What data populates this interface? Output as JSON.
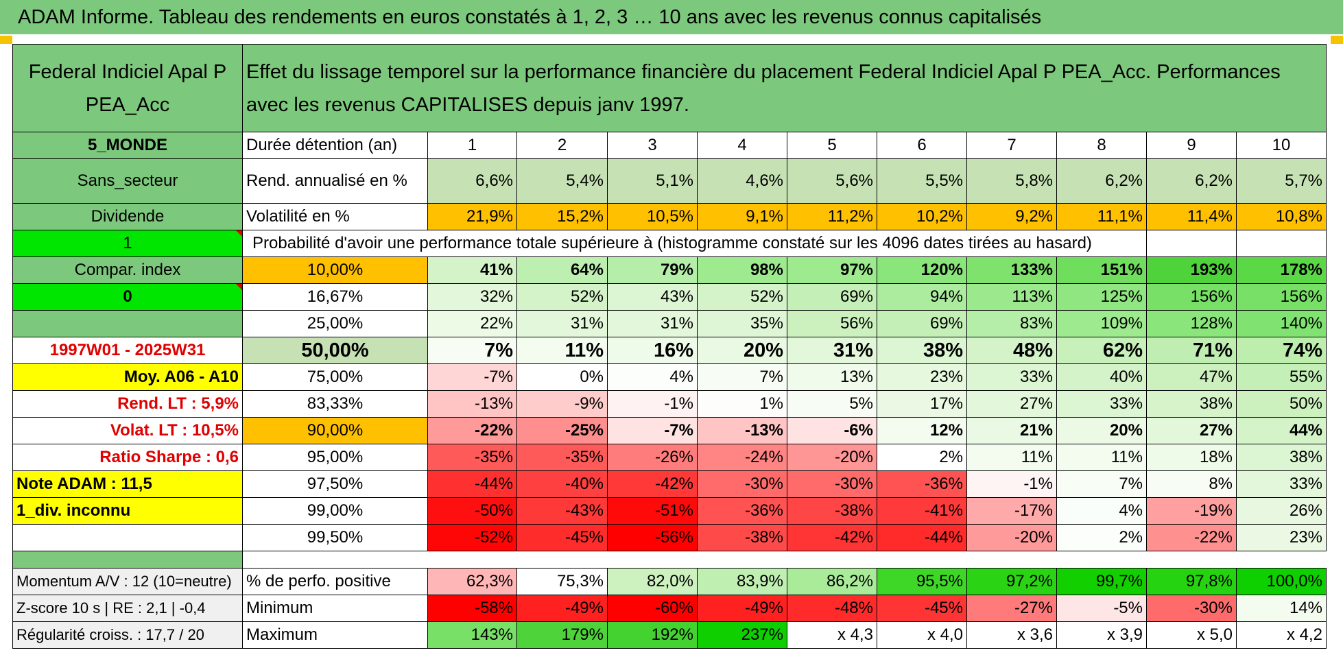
{
  "title": "ADAM Informe. Tableau des rendements en euros constatés à 1, 2, 3 … 10 ans avec les revenus connus capitalisés",
  "fund": {
    "name": "Federal Indiciel Apal P PEA_Acc",
    "description": "Effet du lissage temporel sur la performance financière du placement Federal Indiciel Apal P PEA_Acc. Performances avec les revenus CAPITALISES depuis janv 1997."
  },
  "left_panel": {
    "zone": "5_MONDE",
    "sector": "Sans_secteur",
    "dividend_label": "Dividende",
    "input1": "1",
    "compar_index": "Compar. index",
    "input2": "0",
    "period": "1997W01 - 2025W31",
    "moy": "Moy. A06 - A10",
    "rend_lt": "Rend. LT :    5,9%",
    "volat_lt": "Volat. LT :    10,5%",
    "ratio_sharpe": "Ratio Sharpe :    0,6",
    "note_adam": "Note ADAM : 11,5",
    "div_inconnu": "1_div. inconnu",
    "momentum": "Momentum A/V : 12 (10=neutre)",
    "zscore": "Z-score 10 s | RE : 2,1 | -0,4",
    "regularite": "Régularité croiss. : 17,7 / 20"
  },
  "table": {
    "duration_label": "Durée détention (an)",
    "years": [
      "1",
      "2",
      "3",
      "4",
      "5",
      "6",
      "7",
      "8",
      "9",
      "10"
    ],
    "rend_label": "Rend. annualisé en %",
    "rend": [
      "6,6%",
      "5,4%",
      "5,1%",
      "4,6%",
      "5,6%",
      "5,5%",
      "5,8%",
      "6,2%",
      "6,2%",
      "5,7%"
    ],
    "vol_label": "Volatilité en %",
    "vol": [
      "21,9%",
      "15,2%",
      "10,5%",
      "9,1%",
      "11,2%",
      "10,2%",
      "9,2%",
      "11,1%",
      "11,4%",
      "10,8%"
    ],
    "prob_label": "Probabilité d'avoir une performance totale supérieure à (histogramme constaté sur les 4096 dates tirées au hasard)",
    "prob_rows": [
      {
        "p": "10,00%",
        "v": [
          "41%",
          "64%",
          "79%",
          "98%",
          "97%",
          "120%",
          "133%",
          "151%",
          "193%",
          "178%"
        ]
      },
      {
        "p": "16,67%",
        "v": [
          "32%",
          "52%",
          "43%",
          "52%",
          "69%",
          "94%",
          "113%",
          "125%",
          "156%",
          "156%"
        ]
      },
      {
        "p": "25,00%",
        "v": [
          "22%",
          "31%",
          "31%",
          "35%",
          "56%",
          "69%",
          "83%",
          "109%",
          "128%",
          "140%"
        ]
      },
      {
        "p": "50,00%",
        "v": [
          "7%",
          "11%",
          "16%",
          "20%",
          "31%",
          "38%",
          "48%",
          "62%",
          "71%",
          "74%"
        ]
      },
      {
        "p": "75,00%",
        "v": [
          "-7%",
          "0%",
          "4%",
          "7%",
          "13%",
          "23%",
          "33%",
          "40%",
          "47%",
          "55%"
        ]
      },
      {
        "p": "83,33%",
        "v": [
          "-13%",
          "-9%",
          "-1%",
          "1%",
          "5%",
          "17%",
          "27%",
          "33%",
          "38%",
          "50%"
        ]
      },
      {
        "p": "90,00%",
        "v": [
          "-22%",
          "-25%",
          "-7%",
          "-13%",
          "-6%",
          "12%",
          "21%",
          "20%",
          "27%",
          "44%"
        ]
      },
      {
        "p": "95,00%",
        "v": [
          "-35%",
          "-35%",
          "-26%",
          "-24%",
          "-20%",
          "2%",
          "11%",
          "11%",
          "18%",
          "38%"
        ]
      },
      {
        "p": "97,50%",
        "v": [
          "-44%",
          "-40%",
          "-42%",
          "-30%",
          "-30%",
          "-36%",
          "-1%",
          "7%",
          "8%",
          "33%"
        ]
      },
      {
        "p": "99,00%",
        "v": [
          "-50%",
          "-43%",
          "-51%",
          "-36%",
          "-38%",
          "-41%",
          "-17%",
          "4%",
          "-19%",
          "26%"
        ]
      },
      {
        "p": "99,50%",
        "v": [
          "-52%",
          "-45%",
          "-56%",
          "-38%",
          "-42%",
          "-44%",
          "-20%",
          "2%",
          "-22%",
          "23%"
        ]
      }
    ],
    "pos_label": "% de perfo. positive",
    "pos": [
      "62,3%",
      "75,3%",
      "82,0%",
      "83,9%",
      "86,2%",
      "95,5%",
      "97,2%",
      "99,7%",
      "97,8%",
      "100,0%"
    ],
    "min_label": "Minimum",
    "min": [
      "-58%",
      "-49%",
      "-60%",
      "-49%",
      "-48%",
      "-45%",
      "-27%",
      "-5%",
      "-30%",
      "14%"
    ],
    "max_label": "Maximum",
    "max": [
      "143%",
      "179%",
      "192%",
      "237%",
      "x 4,3",
      "x 4,0",
      "x 3,6",
      "x 3,9",
      "x 5,0",
      "x 4,2"
    ]
  },
  "colors": {
    "title_green": "#7cc87c",
    "light_green": "#c6e2b4",
    "orange": "#ffc000",
    "bright_green": "#00e600",
    "yellow": "#ffff00",
    "label_red": "#e00000"
  }
}
